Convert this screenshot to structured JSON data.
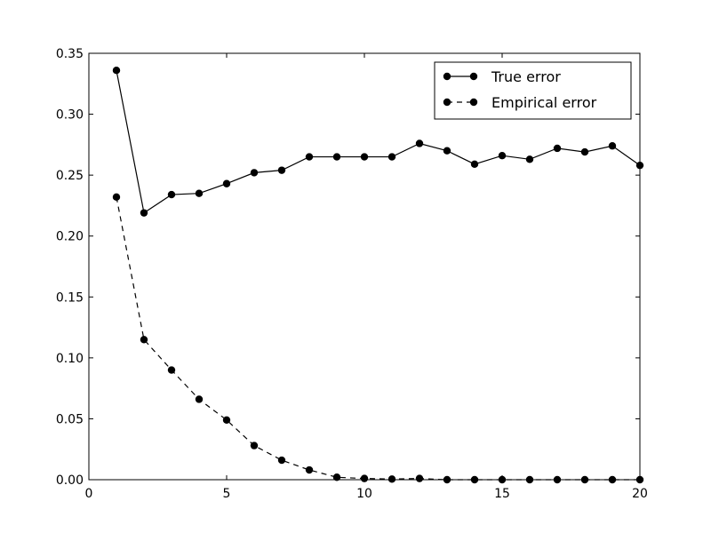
{
  "chart_data": {
    "type": "line",
    "title": "",
    "xlabel": "",
    "ylabel": "",
    "xlim": [
      0,
      20
    ],
    "ylim": [
      0,
      0.35
    ],
    "xticks": [
      0,
      5,
      10,
      15,
      20
    ],
    "xtick_labels": [
      "0",
      "5",
      "10",
      "15",
      "20"
    ],
    "yticks": [
      0,
      0.05,
      0.1,
      0.15,
      0.2,
      0.25,
      0.3,
      0.35
    ],
    "ytick_labels": [
      "0.00",
      "0.05",
      "0.10",
      "0.15",
      "0.20",
      "0.25",
      "0.30",
      "0.35"
    ],
    "grid": false,
    "legend_position": "top-right",
    "x": [
      1,
      2,
      3,
      4,
      5,
      6,
      7,
      8,
      9,
      10,
      11,
      12,
      13,
      14,
      15,
      16,
      17,
      18,
      19,
      20
    ],
    "series": [
      {
        "name": "True error",
        "line_style": "solid",
        "color": "#000000",
        "values": [
          0.336,
          0.219,
          0.234,
          0.235,
          0.243,
          0.252,
          0.254,
          0.265,
          0.265,
          0.265,
          0.265,
          0.276,
          0.27,
          0.259,
          0.266,
          0.263,
          0.272,
          0.269,
          0.274,
          0.258
        ]
      },
      {
        "name": "Empirical error",
        "line_style": "dashed",
        "color": "#000000",
        "values": [
          0.232,
          0.115,
          0.09,
          0.066,
          0.049,
          0.028,
          0.016,
          0.008,
          0.002,
          0.001,
          0.0005,
          0.001,
          0.0,
          0.0,
          0.0,
          0.0,
          0.0,
          0.0,
          0.0,
          0.0
        ]
      }
    ]
  }
}
